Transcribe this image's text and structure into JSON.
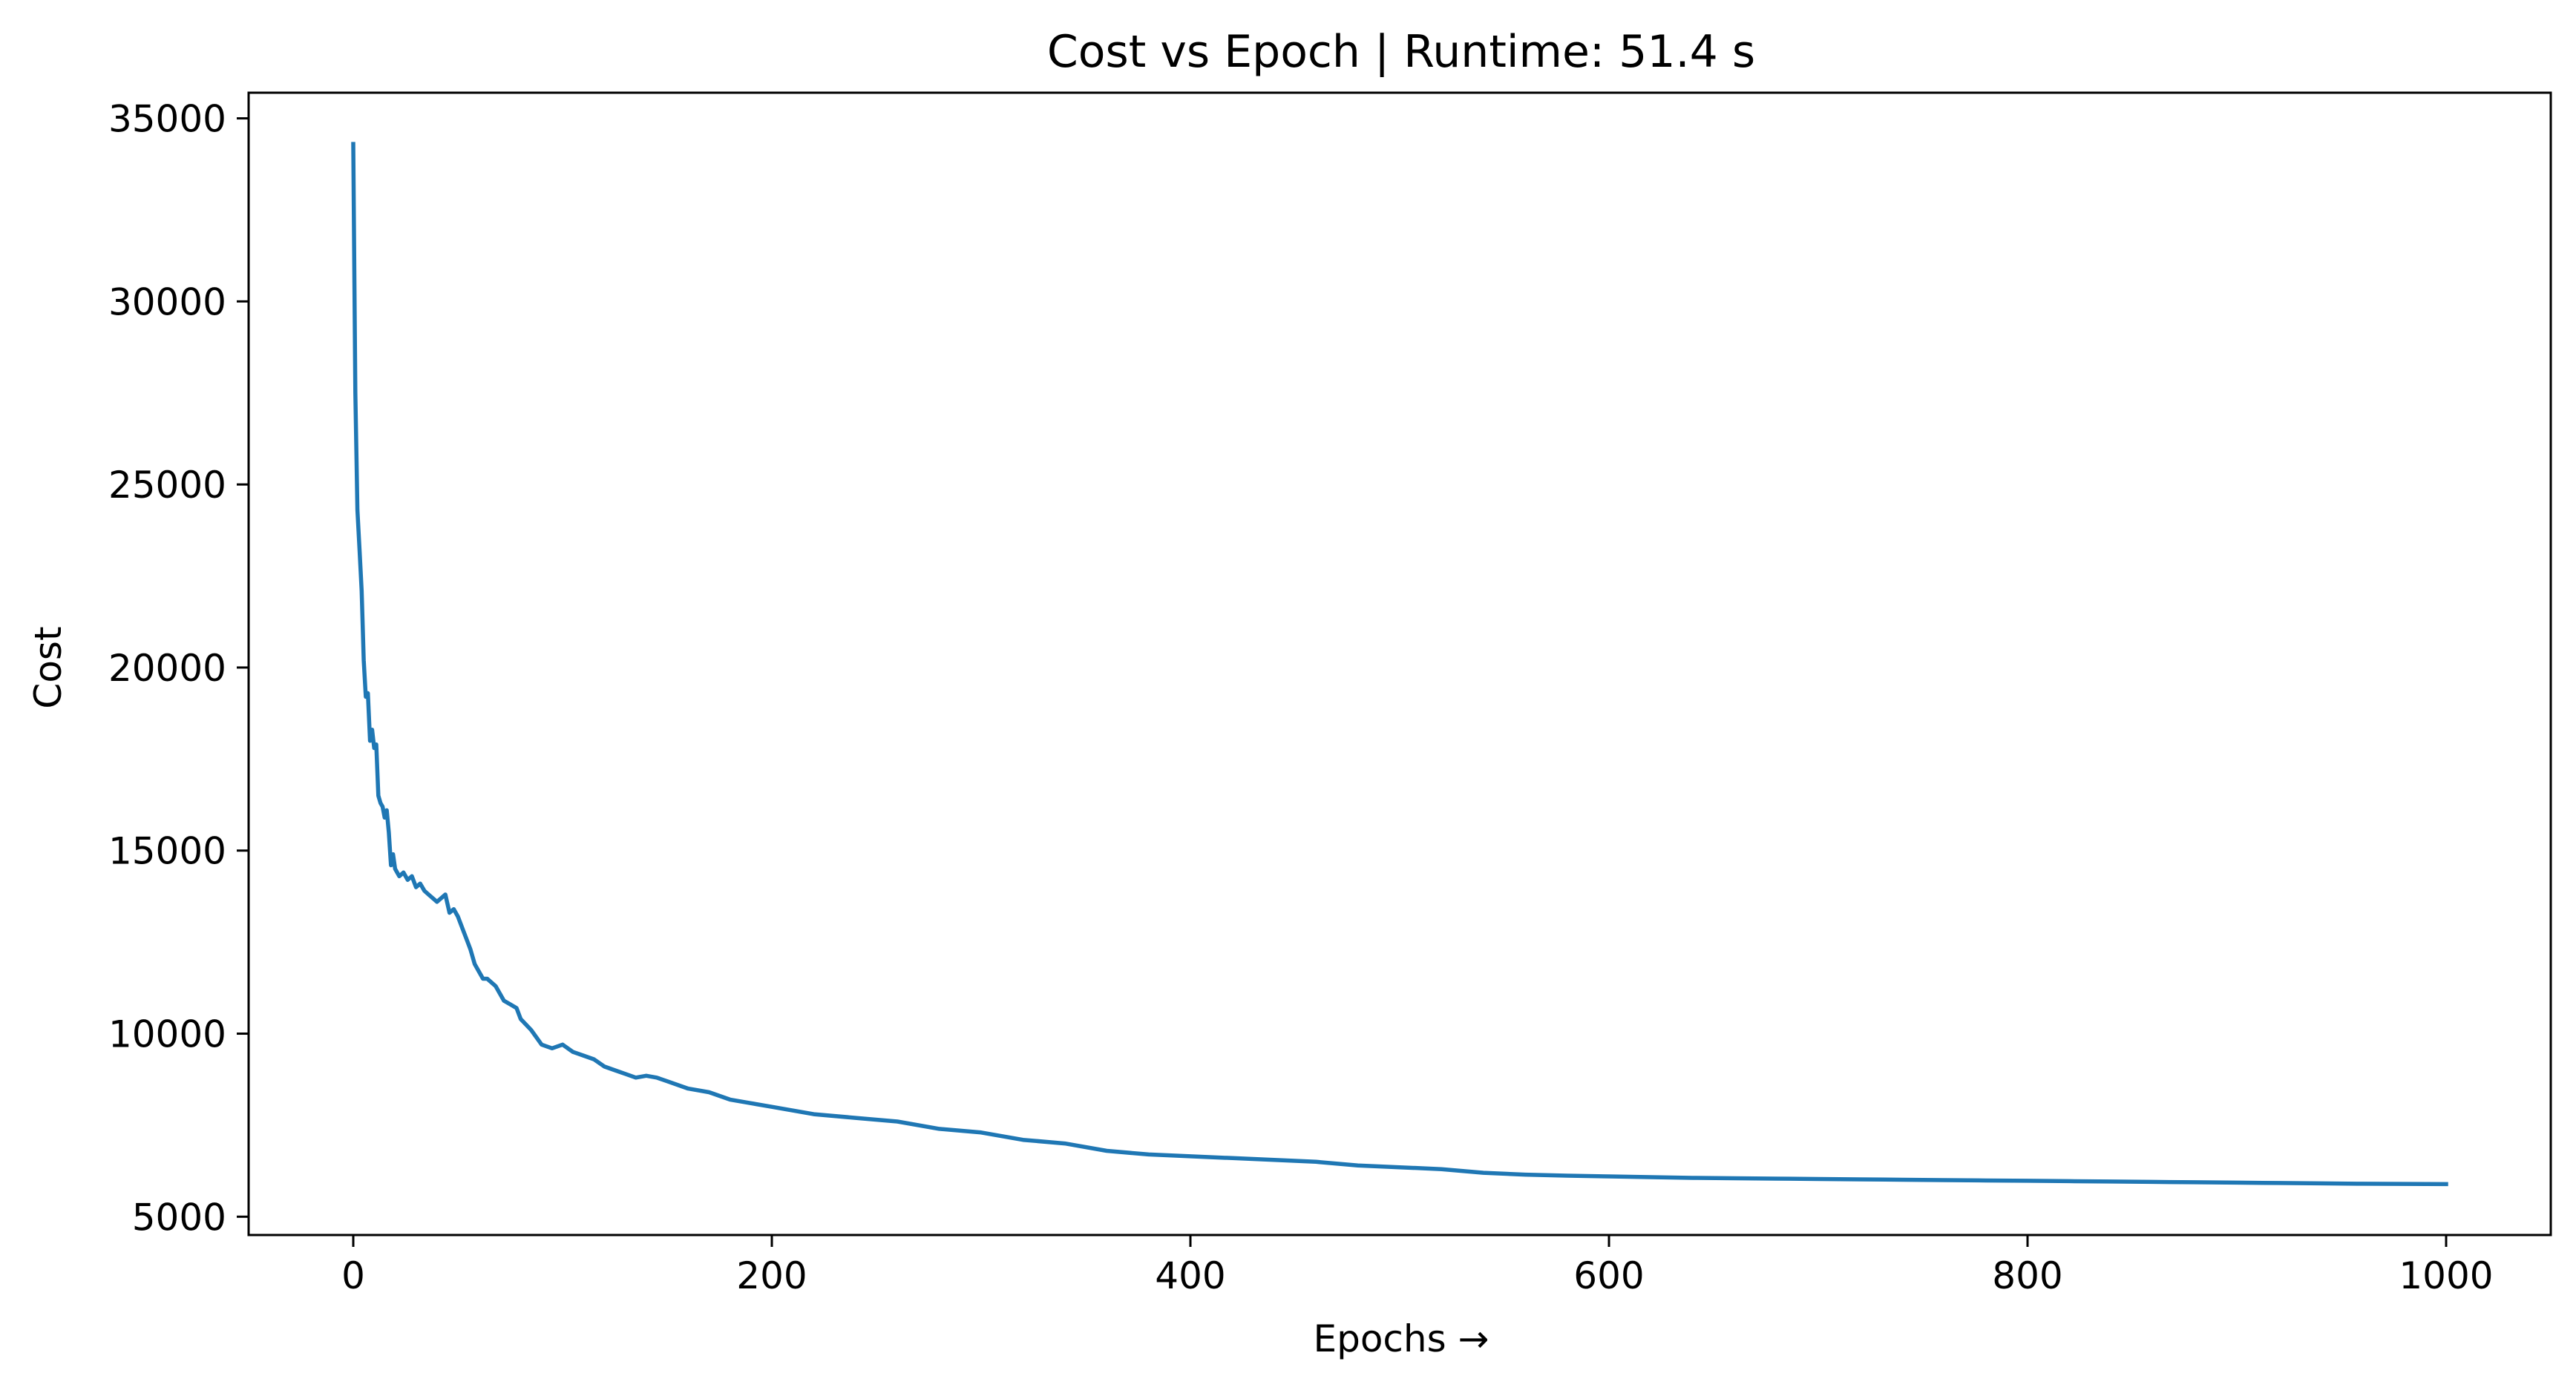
{
  "chart_data": {
    "type": "line",
    "title": "Cost vs Epoch | Runtime: 51.4 s",
    "xlabel": "Epochs →",
    "ylabel": "Cost",
    "xlim": [
      -50,
      1050
    ],
    "ylim": [
      4500,
      35700
    ],
    "xticks": [
      0,
      200,
      400,
      600,
      800,
      1000
    ],
    "yticks": [
      5000,
      10000,
      15000,
      20000,
      25000,
      30000,
      35000
    ],
    "grid": false,
    "legend": "none",
    "line_color": "#1f77b4",
    "series": [
      {
        "x": [
          0,
          1,
          2,
          3,
          4,
          5,
          6,
          7,
          8,
          9,
          10,
          11,
          12,
          13,
          14,
          15,
          16,
          17,
          18,
          19,
          20,
          22,
          24,
          26,
          28,
          30,
          32,
          34,
          36,
          38,
          40,
          42,
          44,
          46,
          48,
          50,
          52,
          54,
          56,
          58,
          60,
          62,
          64,
          66,
          68,
          70,
          72,
          75,
          78,
          80,
          85,
          90,
          95,
          100,
          105,
          110,
          115,
          120,
          125,
          130,
          135,
          140,
          145,
          150,
          160,
          170,
          180,
          190,
          200,
          220,
          240,
          260,
          280,
          300,
          320,
          340,
          360,
          380,
          400,
          420,
          440,
          460,
          480,
          500,
          520,
          540,
          560,
          580,
          600,
          620,
          640,
          660,
          680,
          700,
          720,
          740,
          760,
          780,
          800,
          820,
          840,
          860,
          880,
          900,
          920,
          940,
          960,
          980,
          1000
        ],
        "values": [
          34300,
          27500,
          24300,
          23200,
          22100,
          20200,
          19200,
          19300,
          18000,
          18300,
          17800,
          17900,
          16500,
          16300,
          16200,
          15900,
          16100,
          15500,
          14600,
          14900,
          14500,
          14300,
          14400,
          14200,
          14300,
          14000,
          14100,
          13900,
          13800,
          13700,
          13600,
          13700,
          13800,
          13300,
          13400,
          13200,
          12900,
          12600,
          12300,
          11900,
          11700,
          11500,
          11500,
          11400,
          11300,
          11100,
          10900,
          10800,
          10700,
          10400,
          10100,
          9700,
          9600,
          9700,
          9500,
          9400,
          9300,
          9100,
          9000,
          8900,
          8800,
          8850,
          8800,
          8700,
          8500,
          8400,
          8200,
          8100,
          8000,
          7800,
          7700,
          7600,
          7400,
          7300,
          7100,
          7000,
          6800,
          6700,
          6650,
          6600,
          6550,
          6500,
          6400,
          6350,
          6300,
          6200,
          6150,
          6120,
          6100,
          6080,
          6060,
          6050,
          6040,
          6030,
          6020,
          6010,
          6000,
          5990,
          5980,
          5970,
          5960,
          5950,
          5940,
          5930,
          5920,
          5910,
          5900,
          5895,
          5890
        ]
      }
    ]
  }
}
